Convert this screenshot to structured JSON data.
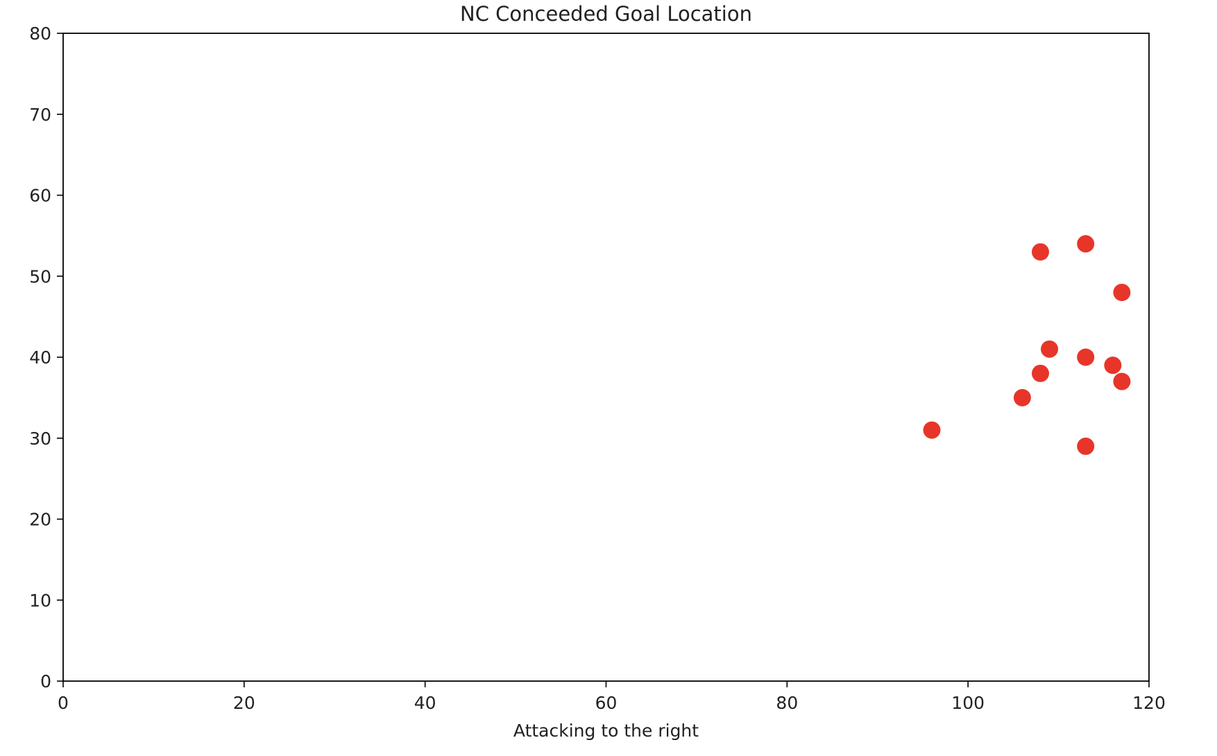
{
  "chart_data": {
    "type": "scatter",
    "title": "NC Conceeded Goal Location",
    "xlabel": "Attacking to the right",
    "ylabel": "",
    "xlim": [
      0,
      120
    ],
    "ylim": [
      0,
      80
    ],
    "xticks": [
      "0",
      "20",
      "40",
      "60",
      "80",
      "100",
      "120"
    ],
    "yticks": [
      "0",
      "10",
      "20",
      "30",
      "40",
      "50",
      "60",
      "70",
      "80"
    ],
    "grid": false,
    "legend": "none",
    "marker_color": "#e8352a",
    "points": [
      {
        "x": 96,
        "y": 31
      },
      {
        "x": 106,
        "y": 35
      },
      {
        "x": 108,
        "y": 38
      },
      {
        "x": 108,
        "y": 53
      },
      {
        "x": 109,
        "y": 41
      },
      {
        "x": 113,
        "y": 54
      },
      {
        "x": 113,
        "y": 40
      },
      {
        "x": 113,
        "y": 29
      },
      {
        "x": 116,
        "y": 39
      },
      {
        "x": 117,
        "y": 48
      },
      {
        "x": 117,
        "y": 37
      }
    ]
  }
}
